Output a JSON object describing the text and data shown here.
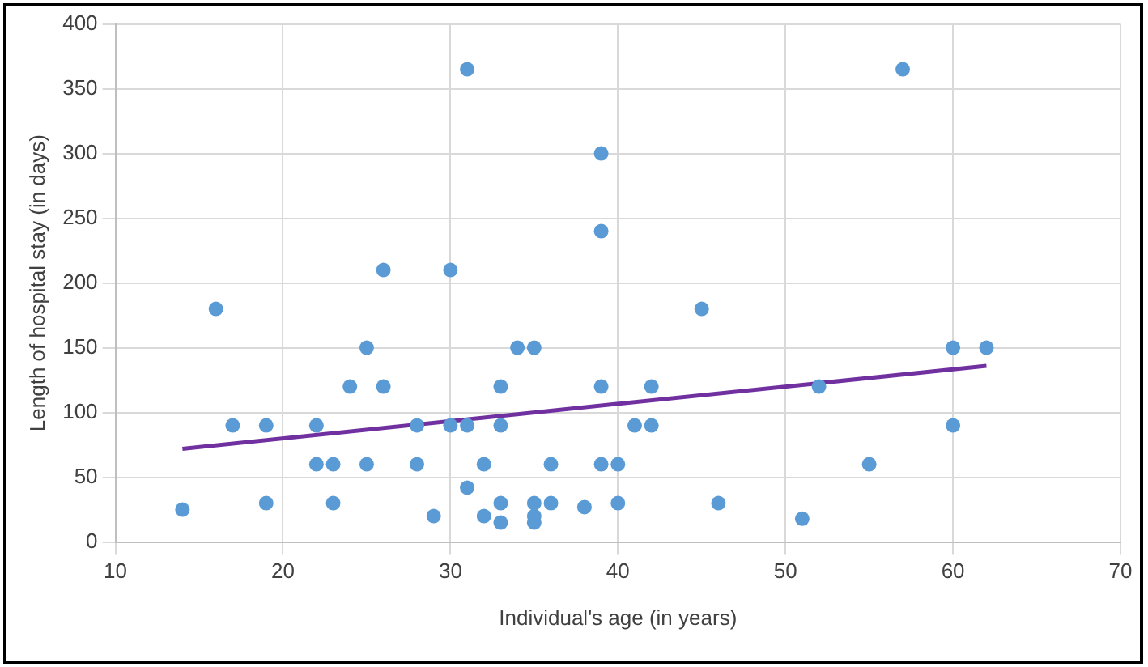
{
  "chart_data": {
    "type": "scatter",
    "xlabel": "Individual's age (in years)",
    "ylabel": "Length of hospital stay (in days)",
    "xlim": [
      10,
      70
    ],
    "xticks": [
      10,
      20,
      30,
      40,
      50,
      60,
      70
    ],
    "ylim": [
      0,
      400
    ],
    "yticks": [
      0,
      50,
      100,
      150,
      200,
      250,
      300,
      350,
      400
    ],
    "grid": true,
    "legend": false,
    "marker": "circle",
    "series": [
      {
        "color": "#5b9bd5",
        "x": [
          14,
          16,
          17,
          19,
          19,
          22,
          22,
          23,
          23,
          24,
          25,
          25,
          26,
          26,
          28,
          28,
          29,
          30,
          30,
          31,
          31,
          31,
          32,
          32,
          33,
          33,
          33,
          33,
          34,
          35,
          35,
          35,
          35,
          36,
          36,
          38,
          39,
          39,
          39,
          39,
          40,
          40,
          41,
          42,
          42,
          45,
          46,
          51,
          52,
          55,
          57,
          60,
          60,
          62
        ],
        "values": [
          25,
          180,
          90,
          90,
          30,
          90,
          60,
          60,
          30,
          120,
          150,
          60,
          210,
          120,
          90,
          60,
          20,
          210,
          90,
          365,
          90,
          42,
          60,
          20,
          120,
          90,
          30,
          15,
          150,
          150,
          30,
          20,
          15,
          60,
          30,
          27,
          300,
          240,
          120,
          60,
          60,
          30,
          90,
          120,
          90,
          180,
          30,
          18,
          120,
          60,
          365,
          150,
          90,
          150
        ]
      },
      {
        "type": "line",
        "color": "#7030a0",
        "x": [
          14,
          62
        ],
        "values": [
          72,
          136
        ],
        "line_style": "solid",
        "marker": "none"
      }
    ]
  }
}
